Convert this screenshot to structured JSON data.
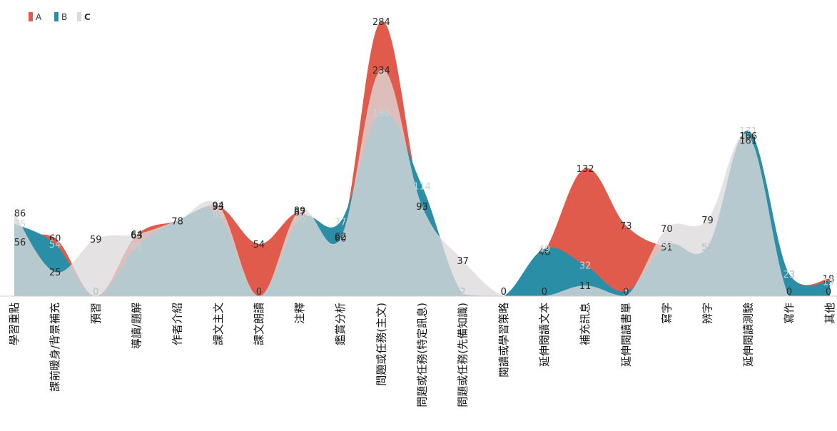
{
  "chart_data": {
    "type": "area",
    "legend_position": "top-left",
    "grid": false,
    "ylim": [
      0,
      290
    ],
    "categories": [
      "學習重點",
      "課前暖身/背景補充",
      "預習",
      "導讀/題解",
      "作者介紹",
      "課文主文",
      "課文朗讀",
      "注釋",
      "鑑賞分析",
      "問題或任務(主文)",
      "問題或任務(特定訊息)",
      "問題或任務(先備知識)",
      "閱讀或學習策略",
      "延伸閱讀文本",
      "補充訊息",
      "延伸閱讀書單",
      "寫字",
      "辨字",
      "延伸閱讀測驗",
      "寫作",
      "其他"
    ],
    "series": [
      {
        "name": "A",
        "color": "#e15b4c",
        "values": [
          56,
          60,
          0,
          63,
          78,
          93,
          54,
          87,
          62,
          284,
          93,
          2,
          0,
          46,
          132,
          73,
          51,
          51,
          161,
          23,
          18
        ]
      },
      {
        "name": "B",
        "color": "#2a8ea6",
        "values": [
          75,
          54,
          0,
          51,
          78,
          85,
          0,
          80,
          77,
          190,
          114,
          2,
          0,
          49,
          32,
          5,
          53,
          51,
          171,
          23,
          15
        ]
      },
      {
        "name": "C",
        "color": "#dcdada",
        "values": [
          86,
          25,
          59,
          64,
          78,
          94,
          0,
          89,
          60,
          234,
          93,
          37,
          0,
          0,
          11,
          0,
          70,
          79,
          166,
          0,
          0
        ]
      }
    ]
  }
}
